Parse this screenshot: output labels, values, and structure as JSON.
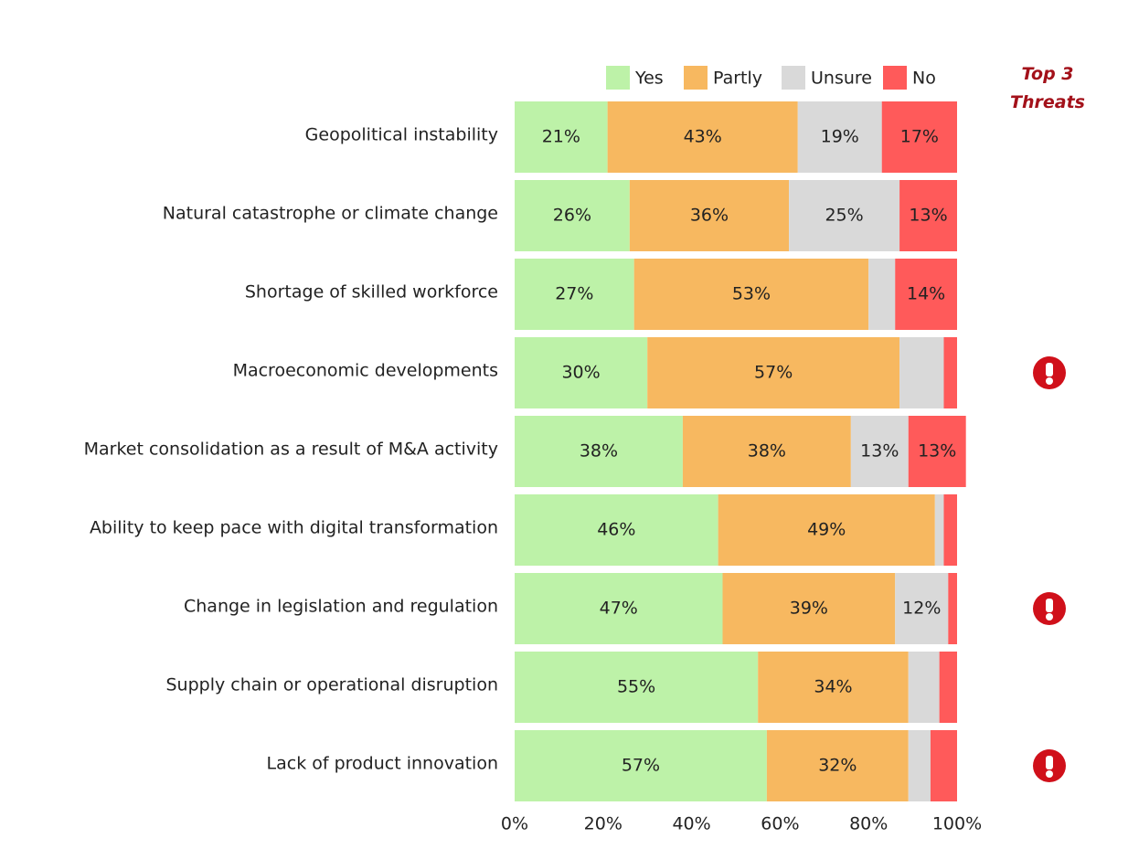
{
  "chart_data": {
    "type": "stacked-bar-horizontal",
    "annotation": "Top 3 Threats",
    "categories": [
      "Geopolitical instability",
      "Natural catastrophe or climate change",
      "Shortage of skilled workforce",
      "Macroeconomic developments",
      "Market consolidation as a result of M&A activity",
      "Ability to keep pace with digital transformation",
      "Change in legislation and regulation",
      "Supply chain or operational disruption",
      "Lack of product innovation"
    ],
    "threat_flags": [
      false,
      false,
      false,
      true,
      false,
      false,
      true,
      false,
      true
    ],
    "series": [
      {
        "name": "Yes",
        "color": "#bdf2a8",
        "values": [
          21,
          26,
          27,
          30,
          38,
          46,
          47,
          55,
          57
        ],
        "value_labels": [
          "21%",
          "26%",
          "27%",
          "30%",
          "38%",
          "46%",
          "47%",
          "55%",
          "57%"
        ]
      },
      {
        "name": "Partly",
        "color": "#f7b860",
        "values": [
          43,
          36,
          53,
          57,
          38,
          49,
          39,
          34,
          32
        ],
        "value_labels": [
          "43%",
          "36%",
          "53%",
          "57%",
          "38%",
          "49%",
          "39%",
          "34%",
          "32%"
        ]
      },
      {
        "name": "Unsure",
        "color": "#d9d9d9",
        "values": [
          19,
          25,
          6,
          10,
          13,
          2,
          12,
          7,
          5
        ],
        "value_labels": [
          "19%",
          "25%",
          null,
          null,
          "13%",
          null,
          "12%",
          null,
          null
        ]
      },
      {
        "name": "No",
        "color": "#ff5a5a",
        "values": [
          17,
          13,
          14,
          3,
          13,
          3,
          2,
          4,
          6
        ],
        "value_labels": [
          "17%",
          "13%",
          "14%",
          null,
          "13%",
          null,
          null,
          null,
          null
        ]
      }
    ],
    "xlim": [
      0,
      100
    ],
    "xticks": [
      {
        "value": 0,
        "label": "0%"
      },
      {
        "value": 20,
        "label": "20%"
      },
      {
        "value": 40,
        "label": "40%"
      },
      {
        "value": 60,
        "label": "60%"
      },
      {
        "value": 80,
        "label": "80%"
      },
      {
        "value": 100,
        "label": "100%"
      }
    ]
  }
}
